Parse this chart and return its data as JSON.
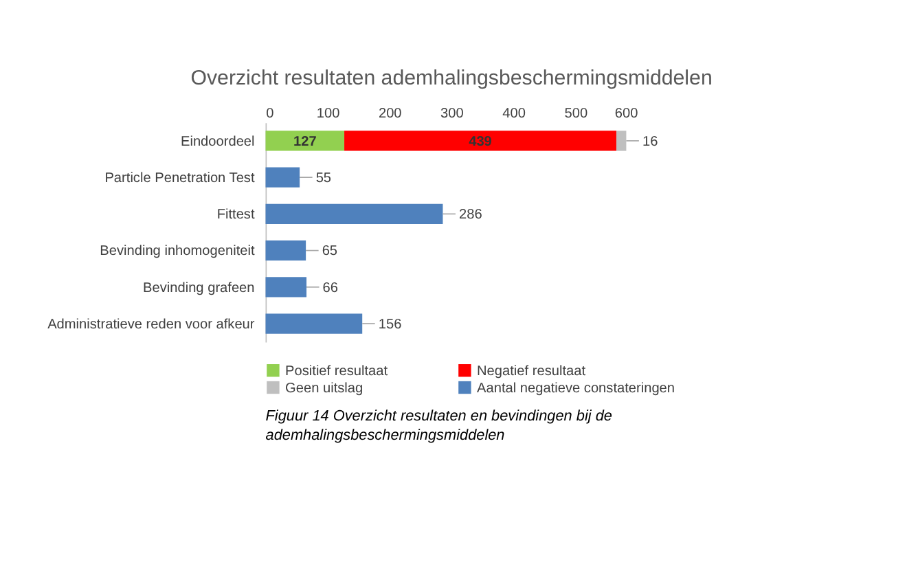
{
  "chart_data": {
    "type": "bar",
    "orientation": "horizontal",
    "stacked": true,
    "title": "Overzicht resultaten ademhalingsbeschermingsmiddelen",
    "categories": [
      "Eindoordeel",
      "Particle Penetration Test",
      "Fittest",
      "Bevinding inhomogeniteit",
      "Bevinding grafeen",
      "Administratieve reden voor afkeur"
    ],
    "series": [
      {
        "name": "Positief resultaat",
        "color": "#92d050",
        "values": [
          127,
          null,
          null,
          null,
          null,
          null
        ]
      },
      {
        "name": "Negatief resultaat",
        "color": "#ff0000",
        "values": [
          439,
          null,
          null,
          null,
          null,
          null
        ]
      },
      {
        "name": "Geen uitslag",
        "color": "#bfbfbf",
        "values": [
          16,
          null,
          null,
          null,
          null,
          null
        ]
      },
      {
        "name": "Aantal negatieve constateringen",
        "color": "#4f81bd",
        "values": [
          null,
          55,
          286,
          65,
          66,
          156
        ]
      }
    ],
    "xlim": [
      0,
      600
    ],
    "xticks": [
      0,
      100,
      200,
      300,
      400,
      500,
      600
    ],
    "data_labels": true,
    "legend": "bottom",
    "grid": false,
    "annotations": [
      "Figuur 14 Overzicht resultaten en bevindingen bij de ademhalingsbeschermingsmiddelen"
    ]
  }
}
